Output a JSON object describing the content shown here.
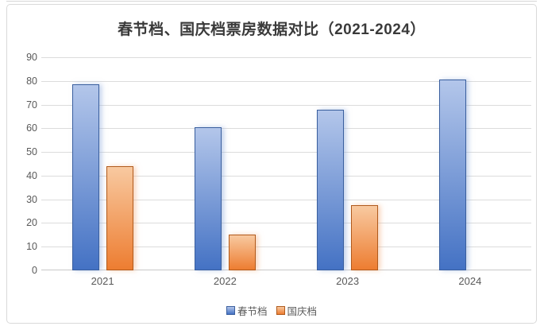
{
  "title": "春节档、国庆档票房数据对比（2021-2024）",
  "chart_data": {
    "type": "bar",
    "title": "春节档、国庆档票房数据对比（2021-2024）",
    "categories": [
      "2021",
      "2022",
      "2023",
      "2024"
    ],
    "series": [
      {
        "name": "春节档",
        "values": [
          78.5,
          60.5,
          68,
          80.5
        ],
        "color": "#4472c4",
        "color_light": "#b3c6ea",
        "border_color": "#3a5f9e",
        "glow_color": "rgba(142,170,219,0.55)"
      },
      {
        "name": "国庆档",
        "values": [
          44,
          15,
          27.5,
          null
        ],
        "color": "#ed7d31",
        "color_light": "#f8c9a0",
        "border_color": "#b05a1c",
        "glow_color": "rgba(244,177,131,0.55)"
      }
    ],
    "xlabel": "",
    "ylabel": "",
    "ylim": [
      0,
      90
    ],
    "yticks": [
      0,
      10,
      20,
      30,
      40,
      50,
      60,
      70,
      80,
      90
    ],
    "grid": true,
    "legend_position": "bottom"
  },
  "frame": {
    "border_color": "#d9d9d9",
    "background": "#ffffff"
  },
  "text_colors": {
    "title": "#3a3a3a",
    "axis_labels": "#595959"
  }
}
